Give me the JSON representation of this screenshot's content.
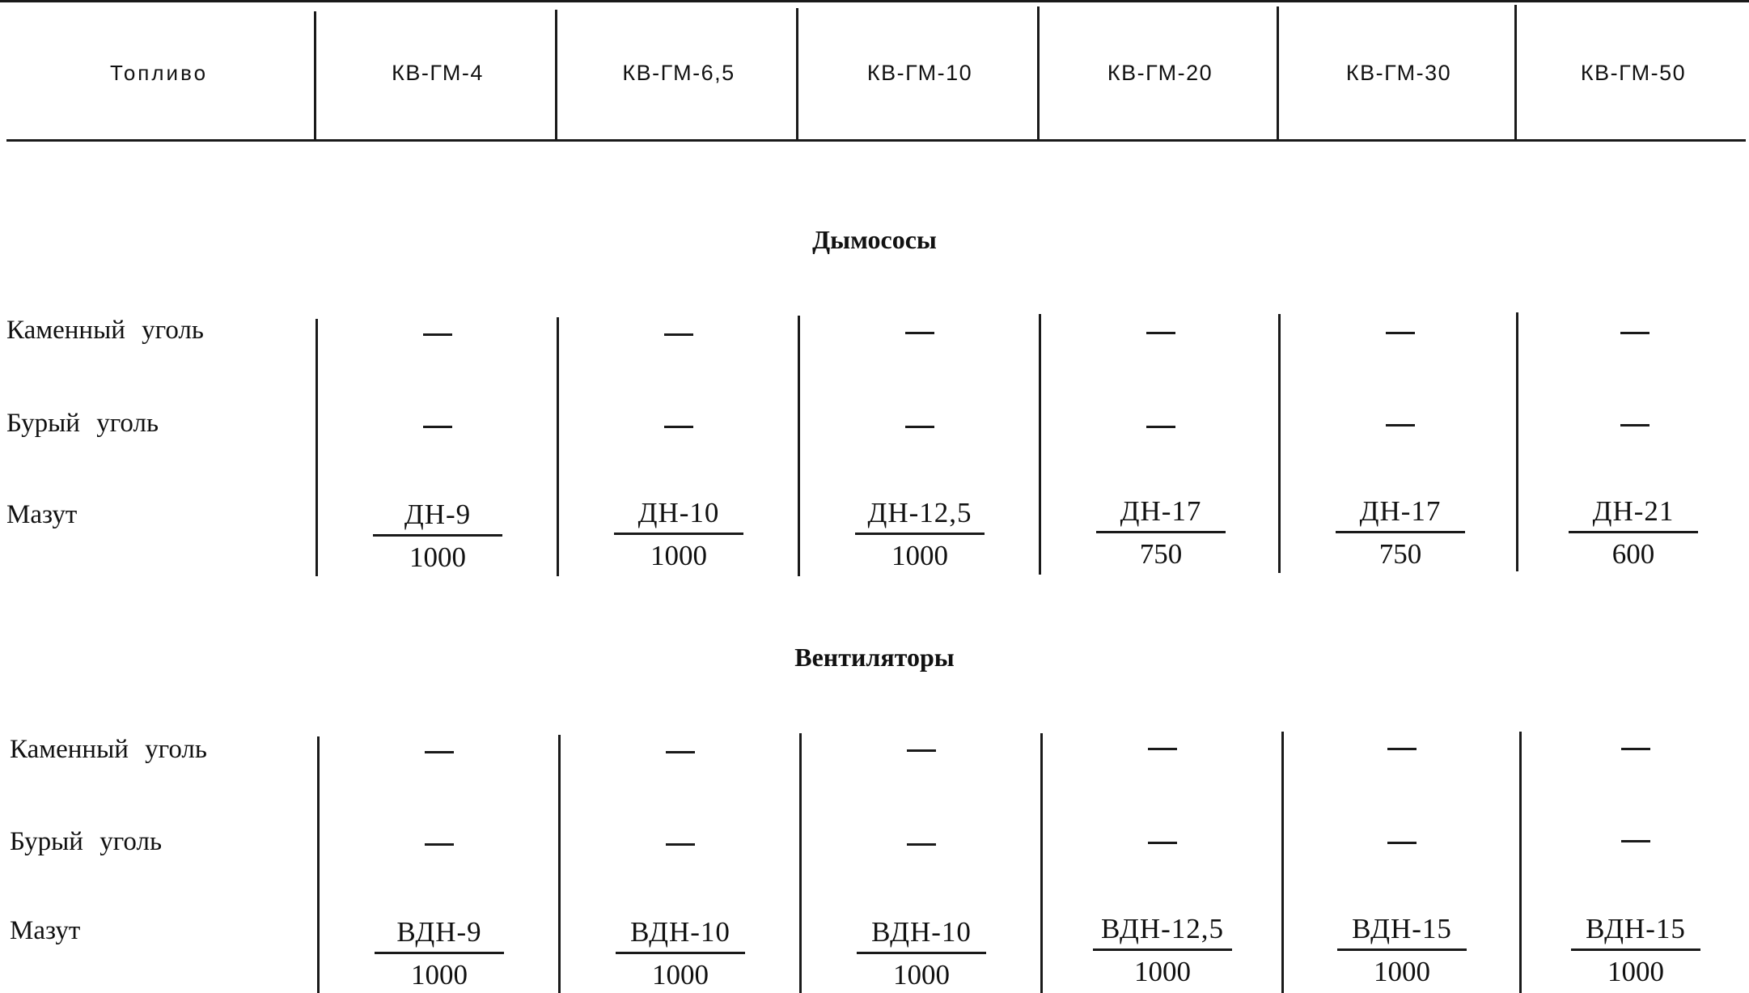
{
  "header": {
    "fuel_label": "Топливо",
    "columns": [
      "КВ-ГМ-4",
      "КВ-ГМ-6,5",
      "КВ-ГМ-10",
      "КВ-ГМ-20",
      "КВ-ГМ-30",
      "КВ-ГМ-50"
    ]
  },
  "sections": [
    {
      "title": "Дымососы",
      "rows": [
        {
          "label": "Каменный уголь",
          "values": [
            "—",
            "—",
            "—",
            "—",
            "—",
            "—"
          ]
        },
        {
          "label": "Бурый уголь",
          "values": [
            "—",
            "—",
            "—",
            "—",
            "—",
            "—"
          ]
        },
        {
          "label": "Мазут",
          "values": [
            {
              "name": "ДН-9",
              "rpm": "1000"
            },
            {
              "name": "ДН-10",
              "rpm": "1000"
            },
            {
              "name": "ДН-12,5",
              "rpm": "1000"
            },
            {
              "name": "ДН-17",
              "rpm": "750"
            },
            {
              "name": "ДН-17",
              "rpm": "750"
            },
            {
              "name": "ДН-21",
              "rpm": "600"
            }
          ]
        }
      ]
    },
    {
      "title": "Вентиляторы",
      "rows": [
        {
          "label": "Каменный уголь",
          "values": [
            "—",
            "—",
            "—",
            "—",
            "—",
            "—"
          ]
        },
        {
          "label": "Бурый уголь",
          "values": [
            "—",
            "—",
            "—",
            "—",
            "—",
            "—"
          ]
        },
        {
          "label": "Мазут",
          "values": [
            {
              "name": "ВДН-9",
              "rpm": "1000"
            },
            {
              "name": "ВДН-10",
              "rpm": "1000"
            },
            {
              "name": "ВДН-10",
              "rpm": "1000"
            },
            {
              "name": "ВДН-12,5",
              "rpm": "1000"
            },
            {
              "name": "ВДН-15",
              "rpm": "1000"
            },
            {
              "name": "ВДН-15",
              "rpm": "1000"
            }
          ]
        }
      ]
    }
  ]
}
